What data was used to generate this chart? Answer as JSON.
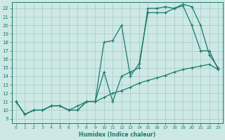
{
  "xlabel": "Humidex (Indice chaleur)",
  "background_color": "#cde8e5",
  "grid_color": "#aacfcc",
  "line_color": "#1a7a6e",
  "xlim": [
    -0.5,
    23.5
  ],
  "ylim": [
    8.5,
    22.7
  ],
  "xticks": [
    0,
    1,
    2,
    3,
    4,
    5,
    6,
    7,
    8,
    9,
    10,
    11,
    12,
    13,
    14,
    15,
    16,
    17,
    18,
    19,
    20,
    21,
    22,
    23
  ],
  "yticks": [
    9,
    10,
    11,
    12,
    13,
    14,
    15,
    16,
    17,
    18,
    19,
    20,
    21,
    22
  ],
  "series1_x": [
    0,
    1,
    2,
    3,
    4,
    5,
    6,
    7,
    8,
    9,
    10,
    11,
    12,
    13,
    14,
    15,
    16,
    17,
    18,
    19,
    20,
    21,
    22,
    23
  ],
  "series1_y": [
    11,
    9.5,
    10,
    10,
    10.5,
    10.5,
    10,
    10,
    11,
    11,
    18,
    18.2,
    20,
    14,
    15.5,
    21.5,
    21.5,
    21.5,
    22,
    22.3,
    20,
    17,
    17,
    14.8
  ],
  "series2_x": [
    0,
    1,
    2,
    3,
    4,
    5,
    6,
    7,
    8,
    9,
    10,
    11,
    12,
    13,
    14,
    15,
    16,
    17,
    18,
    19,
    20,
    21,
    22,
    23
  ],
  "series2_y": [
    11,
    9.5,
    10,
    10,
    10.5,
    10.5,
    10,
    10,
    11,
    11,
    14.5,
    11,
    14,
    14.5,
    15,
    22,
    22,
    22.2,
    22,
    22.5,
    22.2,
    20,
    16.5,
    15
  ],
  "series3_x": [
    0,
    1,
    2,
    3,
    4,
    5,
    6,
    7,
    8,
    9,
    10,
    11,
    12,
    13,
    14,
    15,
    16,
    17,
    18,
    19,
    20,
    21,
    22,
    23
  ],
  "series3_y": [
    11,
    9.5,
    10,
    10,
    10.5,
    10.5,
    10,
    10.5,
    11,
    11,
    11.5,
    12,
    12.3,
    12.7,
    13.2,
    13.5,
    13.8,
    14.1,
    14.5,
    14.8,
    15.0,
    15.2,
    15.4,
    14.8
  ]
}
